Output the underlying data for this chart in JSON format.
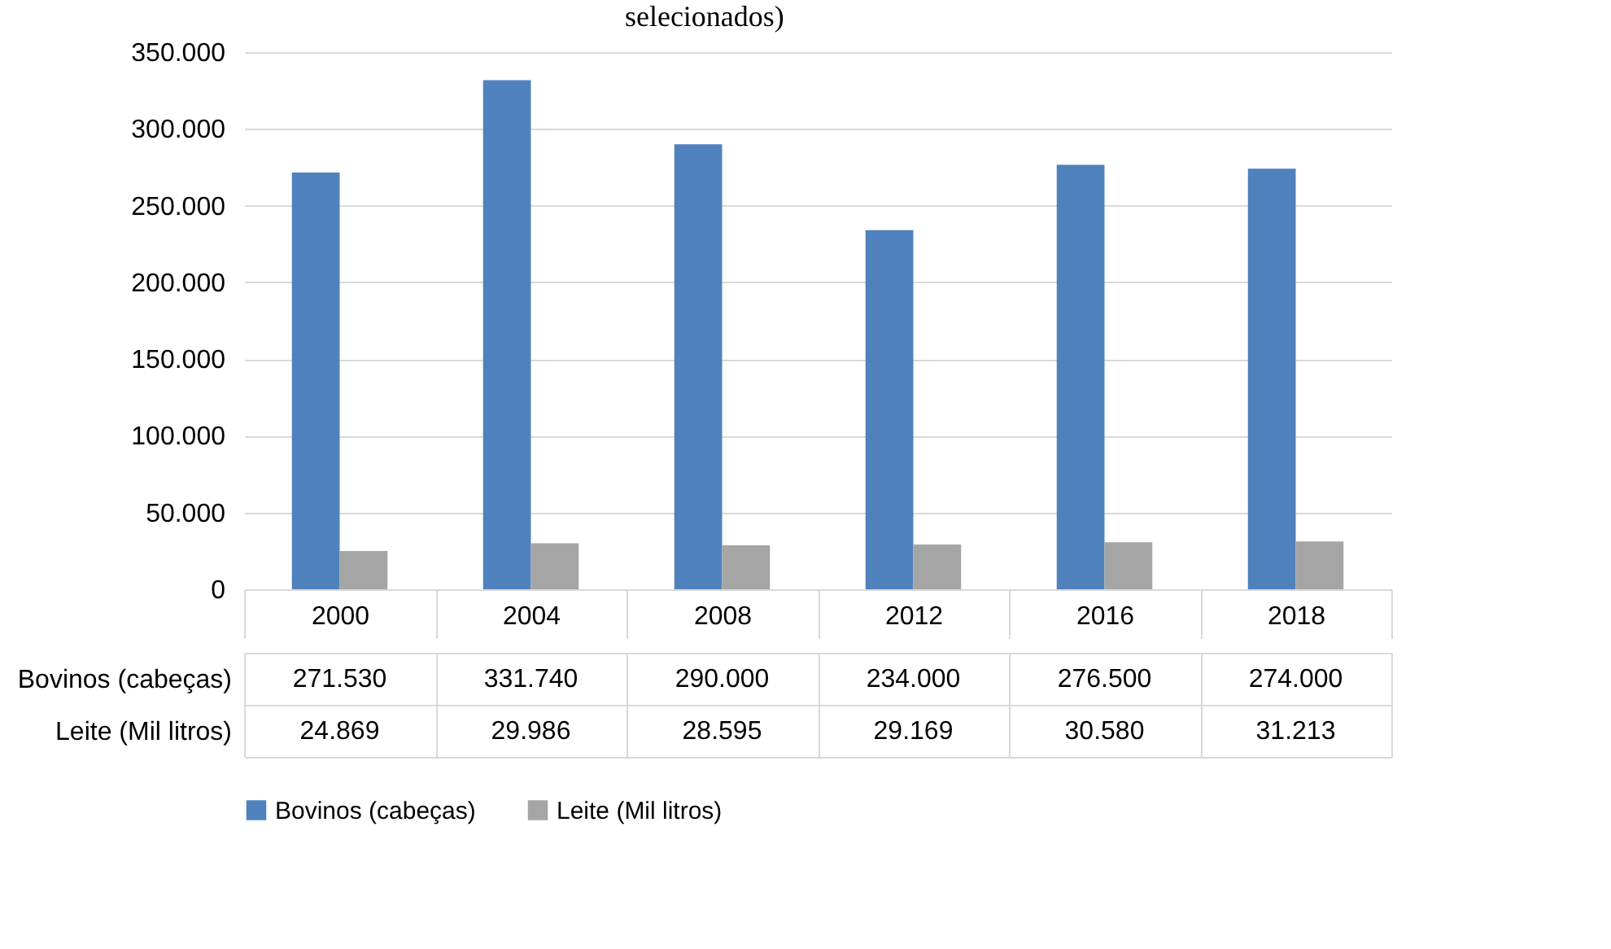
{
  "chart_data": {
    "type": "bar",
    "title": "selecionados)",
    "categories": [
      "2000",
      "2004",
      "2008",
      "2012",
      "2016",
      "2018"
    ],
    "series": [
      {
        "name": "Bovinos (cabeças)",
        "color": "#4f81bd",
        "values": [
          271530,
          331740,
          290000,
          234000,
          276500,
          274000
        ],
        "value_labels": [
          "271.530",
          "331.740",
          "290.000",
          "234.000",
          "276.500",
          "274.000"
        ]
      },
      {
        "name": "Leite (Mil litros)",
        "color": "#a5a5a5",
        "values": [
          24869,
          29986,
          28595,
          29169,
          30580,
          31213
        ],
        "value_labels": [
          "24.869",
          "29.986",
          "28.595",
          "29.169",
          "30.580",
          "31.213"
        ]
      }
    ],
    "ylim": [
      0,
      350000
    ],
    "yticks": [
      {
        "value": 0,
        "label": "0"
      },
      {
        "value": 50000,
        "label": "50.000"
      },
      {
        "value": 100000,
        "label": "100.000"
      },
      {
        "value": 150000,
        "label": "150.000"
      },
      {
        "value": 200000,
        "label": "200.000"
      },
      {
        "value": 250000,
        "label": "250.000"
      },
      {
        "value": 300000,
        "label": "300.000"
      },
      {
        "value": 350000,
        "label": "350.000"
      }
    ],
    "grid": "y",
    "legend": "bottom"
  }
}
